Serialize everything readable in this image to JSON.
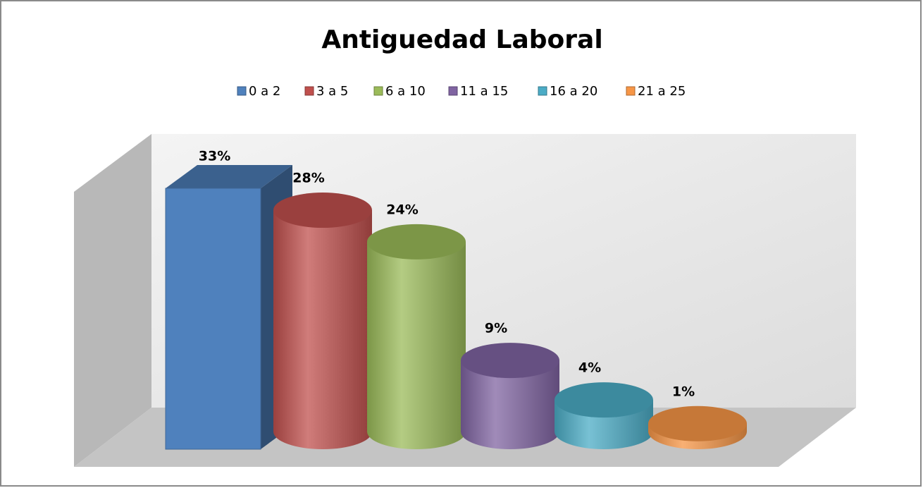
{
  "chart_data": {
    "type": "bar",
    "title": "Antiguedad Laboral",
    "categories": [
      "0 a 2",
      "3 a 5",
      "6 a 10",
      "11 a 15",
      "16 a 20",
      "21 a 25"
    ],
    "values": [
      33,
      28,
      24,
      9,
      4,
      1
    ],
    "value_labels": [
      "33%",
      "28%",
      "24%",
      "9%",
      "4%",
      "1%"
    ],
    "colors": [
      "#4f81bd",
      "#c0504d",
      "#9bbb59",
      "#8064a2",
      "#4bacc6",
      "#f79646"
    ]
  }
}
